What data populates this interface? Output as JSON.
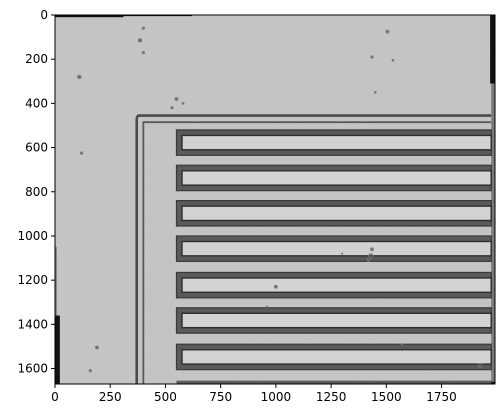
{
  "figure": {
    "image_description": "grayscale microscope image of a comb-like interdigitated pattern",
    "x_ticks": [
      "0",
      "250",
      "500",
      "750",
      "1000",
      "1250",
      "1500",
      "1750"
    ],
    "y_ticks": [
      "0",
      "200",
      "400",
      "600",
      "800",
      "1000",
      "1200",
      "1400",
      "1600"
    ],
    "x_range": [
      0,
      1992
    ],
    "y_range": [
      0,
      1670
    ],
    "colors": {
      "background": "#c6c6c6",
      "frame": "#000000",
      "stripe_border": "#3a3a3a",
      "stripe_fill": "#d2d2d2",
      "edge_dark": "#111111"
    }
  }
}
